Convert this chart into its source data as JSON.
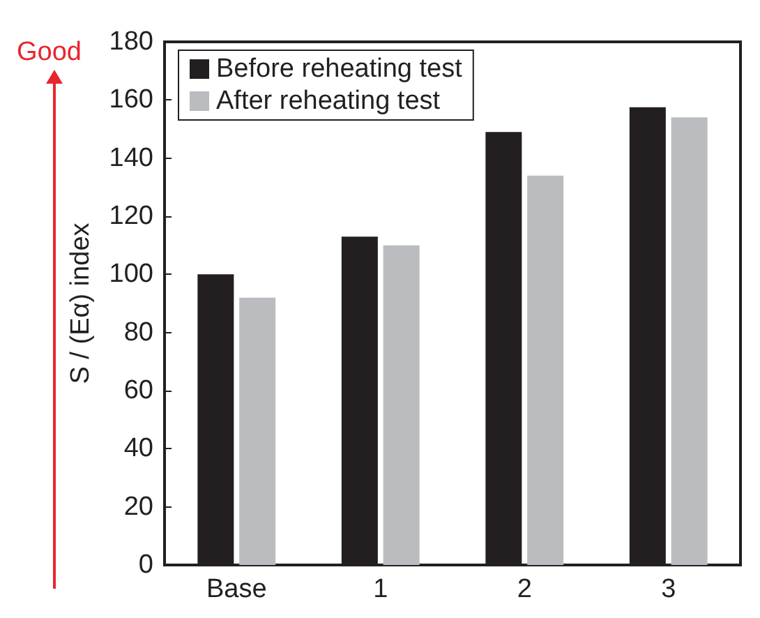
{
  "chart_data": {
    "type": "bar",
    "categories": [
      "Base",
      "1",
      "2",
      "3"
    ],
    "series": [
      {
        "name": "Before reheating test",
        "color": "#231f20",
        "values": [
          100,
          113,
          149,
          157.5
        ]
      },
      {
        "name": "After reheating test",
        "color": "#bbbcc0",
        "values": [
          92,
          110,
          134,
          154
        ]
      }
    ],
    "ylabel": "S / (Eα) index",
    "ylim": [
      0,
      180
    ],
    "yticks": [
      0,
      20,
      40,
      60,
      80,
      100,
      120,
      140,
      160,
      180
    ],
    "legend": "top left",
    "grid": false,
    "annotations": [
      "Good"
    ]
  }
}
